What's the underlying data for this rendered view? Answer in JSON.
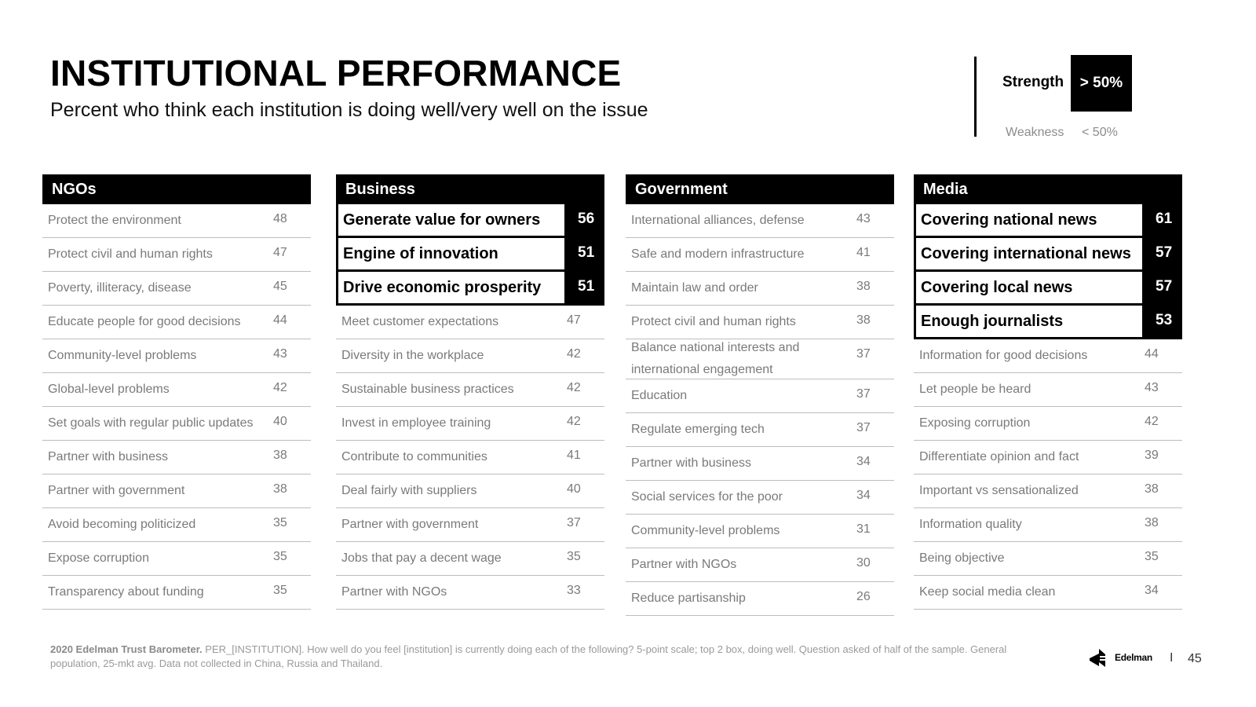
{
  "header": {
    "title": "INSTITUTIONAL PERFORMANCE",
    "subtitle": "Percent who think each institution is doing well/very well on the issue"
  },
  "legend": {
    "strength_label": "Strength",
    "strength_value": "> 50%",
    "weakness_label": "Weakness",
    "weakness_value": "< 50%"
  },
  "chart_data": {
    "type": "table",
    "threshold": 50,
    "panels": [
      {
        "name": "NGOs",
        "items": [
          {
            "label": "Protect the environment",
            "value": 48
          },
          {
            "label": "Protect civil and human rights",
            "value": 47
          },
          {
            "label": "Poverty, illiteracy, disease",
            "value": 45
          },
          {
            "label": "Educate people for good decisions",
            "value": 44
          },
          {
            "label": "Community-level problems",
            "value": 43
          },
          {
            "label": "Global-level problems",
            "value": 42
          },
          {
            "label": "Set goals with regular public updates",
            "value": 40
          },
          {
            "label": "Partner with business",
            "value": 38
          },
          {
            "label": "Partner with government",
            "value": 38
          },
          {
            "label": "Avoid becoming politicized",
            "value": 35
          },
          {
            "label": "Expose corruption",
            "value": 35
          },
          {
            "label": "Transparency about funding",
            "value": 35
          }
        ]
      },
      {
        "name": "Business",
        "items": [
          {
            "label": "Generate value for owners",
            "value": 56
          },
          {
            "label": "Engine of innovation",
            "value": 51
          },
          {
            "label": "Drive economic prosperity",
            "value": 51
          },
          {
            "label": "Meet customer expectations",
            "value": 47
          },
          {
            "label": "Diversity in the workplace",
            "value": 42
          },
          {
            "label": "Sustainable business practices",
            "value": 42
          },
          {
            "label": "Invest in employee training",
            "value": 42
          },
          {
            "label": "Contribute to communities",
            "value": 41
          },
          {
            "label": "Deal fairly with suppliers",
            "value": 40
          },
          {
            "label": "Partner with government",
            "value": 37
          },
          {
            "label": "Jobs that pay a decent wage",
            "value": 35
          },
          {
            "label": "Partner with NGOs",
            "value": 33
          }
        ]
      },
      {
        "name": "Government",
        "items": [
          {
            "label": "International alliances, defense",
            "value": 43
          },
          {
            "label": "Safe and modern infrastructure",
            "value": 41
          },
          {
            "label": "Maintain law and order",
            "value": 38
          },
          {
            "label": "Protect civil and human rights",
            "value": 38
          },
          {
            "label": "Balance national interests and international engagement",
            "value": 37
          },
          {
            "label": "Education",
            "value": 37
          },
          {
            "label": "Regulate emerging tech",
            "value": 37
          },
          {
            "label": "Partner with business",
            "value": 34
          },
          {
            "label": "Social services for the poor",
            "value": 34
          },
          {
            "label": "Community-level problems",
            "value": 31
          },
          {
            "label": "Partner with NGOs",
            "value": 30
          },
          {
            "label": "Reduce partisanship",
            "value": 26
          }
        ]
      },
      {
        "name": "Media",
        "items": [
          {
            "label": "Covering national news",
            "value": 61
          },
          {
            "label": "Covering international news",
            "value": 57
          },
          {
            "label": "Covering local news",
            "value": 57
          },
          {
            "label": "Enough journalists",
            "value": 53
          },
          {
            "label": "Information for good decisions",
            "value": 44
          },
          {
            "label": "Let people be heard",
            "value": 43
          },
          {
            "label": "Exposing corruption",
            "value": 42
          },
          {
            "label": "Differentiate opinion and fact",
            "value": 39
          },
          {
            "label": "Important vs sensationalized",
            "value": 38
          },
          {
            "label": "Information quality",
            "value": 38
          },
          {
            "label": "Being objective",
            "value": 35
          },
          {
            "label": "Keep social media clean",
            "value": 34
          }
        ]
      }
    ]
  },
  "footer": {
    "source_bold": "2020 Edelman Trust Barometer.",
    "source_text": " PER_[INSTITUTION]. How well do you feel [institution] is currently doing each of the following? 5-point scale; top 2 box, doing well. Question asked of half of the sample. General population, 25-mkt avg. Data not collected in China, Russia and Thailand.",
    "logo_text": "Edelman",
    "separator": "I",
    "page_number": "45"
  },
  "colors": {
    "strength_bg": "#000000",
    "weak_text": "#7a7a7a",
    "divider": "#bdbdbd"
  }
}
